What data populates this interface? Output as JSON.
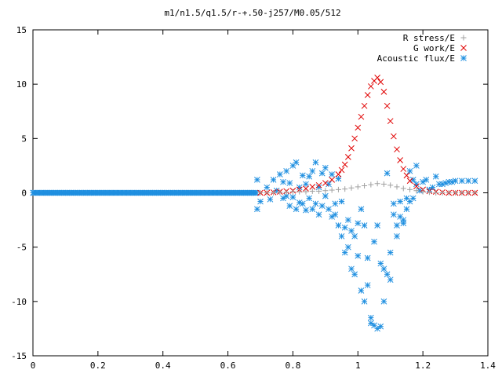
{
  "chart_data": {
    "type": "scatter",
    "title": "m1/n1.5/q1.5/r-+.50-j257/M0.05/512",
    "xlabel": "",
    "ylabel": "",
    "xlim": [
      0,
      1.4
    ],
    "ylim": [
      -15,
      15
    ],
    "x_ticks": [
      "0",
      "0.2",
      "0.4",
      "0.6",
      "0.8",
      "1",
      "1.2",
      "1.4"
    ],
    "y_ticks": [
      "15",
      "10",
      "5",
      "0",
      "-5",
      "-10",
      "-15"
    ],
    "grid": false,
    "legend_position": "top-right",
    "series": [
      {
        "name": "R stress/E",
        "marker": "plus",
        "color": "#a0a0a0",
        "x": [
          0.7,
          0.72,
          0.74,
          0.76,
          0.78,
          0.8,
          0.82,
          0.84,
          0.86,
          0.88,
          0.9,
          0.92,
          0.94,
          0.96,
          0.98,
          1.0,
          1.02,
          1.04,
          1.06,
          1.08,
          1.1,
          1.12,
          1.14,
          1.16,
          1.18,
          1.2,
          1.22,
          1.24,
          1.26,
          1.28,
          1.3,
          1.32,
          1.34,
          1.36
        ],
        "y": [
          0.0,
          0.0,
          0.0,
          0.05,
          0.05,
          0.1,
          0.1,
          0.1,
          0.15,
          0.15,
          0.2,
          0.25,
          0.3,
          0.35,
          0.45,
          0.55,
          0.65,
          0.75,
          0.85,
          0.8,
          0.7,
          0.55,
          0.4,
          0.3,
          0.2,
          0.1,
          0.05,
          0.0,
          0.0,
          0.0,
          0.0,
          0.0,
          0.0,
          0.0
        ]
      },
      {
        "name": "G work/E",
        "marker": "cross",
        "color": "#e00000",
        "x": [
          0.7,
          0.72,
          0.74,
          0.76,
          0.78,
          0.8,
          0.82,
          0.84,
          0.86,
          0.88,
          0.9,
          0.92,
          0.94,
          0.95,
          0.96,
          0.97,
          0.98,
          0.99,
          1.0,
          1.01,
          1.02,
          1.03,
          1.04,
          1.05,
          1.06,
          1.07,
          1.08,
          1.09,
          1.1,
          1.11,
          1.12,
          1.13,
          1.14,
          1.15,
          1.16,
          1.18,
          1.2,
          1.22,
          1.24,
          1.26,
          1.28,
          1.3,
          1.32,
          1.34,
          1.36
        ],
        "y": [
          0.0,
          0.0,
          0.05,
          0.1,
          0.15,
          0.2,
          0.3,
          0.4,
          0.55,
          0.7,
          0.9,
          1.2,
          1.7,
          2.1,
          2.6,
          3.3,
          4.1,
          5.0,
          6.0,
          7.0,
          8.0,
          9.0,
          9.8,
          10.3,
          10.6,
          10.2,
          9.3,
          8.0,
          6.6,
          5.2,
          4.0,
          3.0,
          2.2,
          1.6,
          1.1,
          0.6,
          0.3,
          0.15,
          0.1,
          0.05,
          0.0,
          0.0,
          0.0,
          0.0,
          0.0
        ]
      },
      {
        "name": "Acoustic flux/E",
        "marker": "star",
        "color": "#1f8fe0",
        "x": [
          0.69,
          0.69,
          0.7,
          0.72,
          0.73,
          0.74,
          0.75,
          0.76,
          0.77,
          0.77,
          0.78,
          0.78,
          0.79,
          0.79,
          0.8,
          0.8,
          0.81,
          0.81,
          0.82,
          0.82,
          0.83,
          0.83,
          0.84,
          0.84,
          0.85,
          0.85,
          0.86,
          0.86,
          0.87,
          0.87,
          0.88,
          0.88,
          0.89,
          0.89,
          0.9,
          0.9,
          0.91,
          0.91,
          0.92,
          0.92,
          0.93,
          0.93,
          0.94,
          0.94,
          0.95,
          0.95,
          0.96,
          0.96,
          0.97,
          0.97,
          0.98,
          0.98,
          0.99,
          0.99,
          1.0,
          1.0,
          1.01,
          1.01,
          1.02,
          1.02,
          1.03,
          1.03,
          1.04,
          1.04,
          1.05,
          1.05,
          1.06,
          1.06,
          1.07,
          1.07,
          1.08,
          1.08,
          1.09,
          1.09,
          1.1,
          1.1,
          1.11,
          1.11,
          1.12,
          1.12,
          1.13,
          1.13,
          1.14,
          1.14,
          1.15,
          1.15,
          1.16,
          1.16,
          1.17,
          1.17,
          1.18,
          1.18,
          1.19,
          1.2,
          1.21,
          1.22,
          1.23,
          1.24,
          1.25,
          1.26,
          1.27,
          1.28,
          1.29,
          1.3,
          1.32,
          1.34,
          1.36
        ],
        "y": [
          1.2,
          -1.5,
          -0.8,
          0.5,
          -0.6,
          1.2,
          0.2,
          1.7,
          -0.5,
          1.0,
          2.0,
          -0.3,
          0.9,
          -1.2,
          2.5,
          -0.4,
          2.8,
          -1.5,
          0.5,
          -0.9,
          1.6,
          -1.0,
          0.8,
          -1.6,
          1.5,
          -0.5,
          2.0,
          -1.5,
          2.8,
          -1.0,
          0.5,
          -2.0,
          1.8,
          -1.2,
          2.3,
          -0.3,
          -1.5,
          0.8,
          1.7,
          -2.2,
          -2.0,
          -1.0,
          1.3,
          -3.0,
          -0.8,
          -4.0,
          -3.2,
          -5.5,
          -2.5,
          -5.0,
          -3.5,
          -7.0,
          -4.0,
          -7.5,
          -2.8,
          -5.8,
          -1.5,
          -9.0,
          -3.0,
          -10.0,
          -6.0,
          -8.5,
          -11.5,
          -12.0,
          -4.5,
          -12.2,
          -3.0,
          -12.5,
          -6.5,
          -12.3,
          -7.0,
          -10.0,
          -7.5,
          1.8,
          -5.5,
          -8.0,
          -2.0,
          -1.0,
          -4.0,
          -3.0,
          -2.2,
          -0.8,
          -2.5,
          -2.8,
          -0.5,
          -1.5,
          2.0,
          -0.8,
          1.2,
          -0.5,
          2.5,
          0.8,
          0.2,
          1.0,
          1.2,
          0.3,
          0.5,
          1.5,
          0.8,
          0.8,
          0.9,
          1.0,
          1.0,
          1.1,
          1.1,
          1.1,
          1.1
        ]
      }
    ]
  }
}
